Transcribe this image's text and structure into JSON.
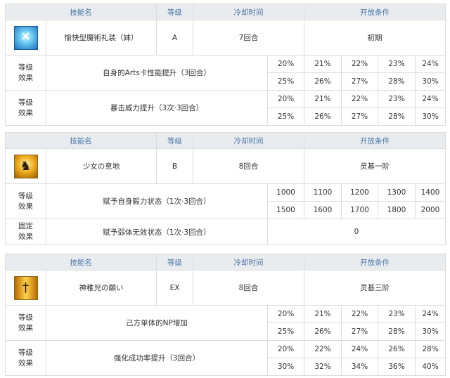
{
  "headers": {
    "name": "技能名",
    "level": "等级",
    "cooldown": "冷却时间",
    "unlock": "开放条件"
  },
  "skills": [
    {
      "icon": "magic-craft-arts-up-icon",
      "icon_style": "blue",
      "glyph": "✕",
      "name": "愉快型魔術礼装（妹）",
      "level": "A",
      "cooldown": "7回合",
      "unlock": "初期",
      "effects": [
        {
          "label": "等级效果",
          "desc": "自身的Arts卡性能提升（3回合）",
          "values": [
            [
              "20%",
              "21%",
              "22%",
              "23%",
              "24%"
            ],
            [
              "25%",
              "26%",
              "27%",
              "28%",
              "30%"
            ]
          ]
        },
        {
          "label": "等级效果",
          "desc": "暴击威力提升（3次·3回合）",
          "values": [
            [
              "20%",
              "21%",
              "22%",
              "23%",
              "24%"
            ],
            [
              "25%",
              "26%",
              "27%",
              "28%",
              "30%"
            ]
          ]
        }
      ]
    },
    {
      "icon": "guts-kneeling-figure-icon",
      "icon_style": "gold1",
      "glyph": "♞",
      "name": "少女の意地",
      "level": "B",
      "cooldown": "8回合",
      "unlock": "灵基一阶",
      "effects": [
        {
          "label": "等级效果",
          "desc": "赋予自身毅力状态（1次·3回合）",
          "values": [
            [
              "1000",
              "1100",
              "1200",
              "1300",
              "1400"
            ],
            [
              "1500",
              "1600",
              "1700",
              "1800",
              "2000"
            ]
          ]
        },
        {
          "label": "固定效果",
          "desc": "赋予弱体无效状态（1次·3回合）",
          "fixed": "0"
        }
      ]
    },
    {
      "icon": "sword-np-charge-icon",
      "icon_style": "gold2",
      "glyph": "†",
      "name": "神稚児の願い",
      "level": "EX",
      "cooldown": "8回合",
      "unlock": "灵基三阶",
      "effects": [
        {
          "label": "等级效果",
          "desc": "己方单体的NP增加",
          "values": [
            [
              "20%",
              "21%",
              "22%",
              "23%",
              "24%"
            ],
            [
              "25%",
              "26%",
              "27%",
              "28%",
              "30%"
            ]
          ]
        },
        {
          "label": "等级效果",
          "desc": "强化成功率提升（3回合）",
          "values": [
            [
              "20%",
              "22%",
              "24%",
              "26%",
              "28%"
            ],
            [
              "30%",
              "32%",
              "34%",
              "36%",
              "40%"
            ]
          ]
        }
      ]
    }
  ]
}
